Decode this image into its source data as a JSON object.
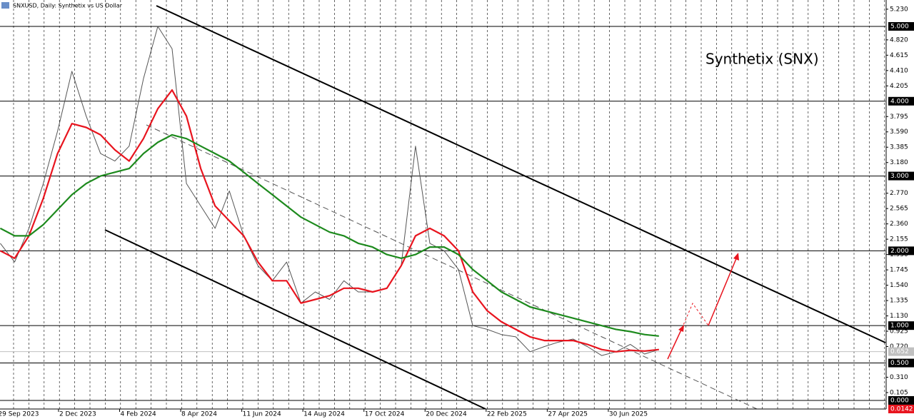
{
  "chart_data": {
    "type": "line",
    "title": "SNXUSD, Daily:  Synthetix vs US Dollar",
    "annotation": "Synthetix (SNX)",
    "x": [
      3,
      18,
      33,
      48,
      63,
      78,
      93,
      108,
      123,
      138,
      153,
      168,
      183,
      198,
      213,
      228,
      243,
      258,
      273,
      288,
      303,
      318,
      333,
      348,
      363,
      378,
      393,
      408,
      423,
      438,
      453,
      468,
      483,
      498,
      513,
      528,
      543,
      558,
      573,
      588,
      603,
      618,
      633,
      648,
      663,
      678,
      693
    ],
    "series": [
      {
        "name": "Price",
        "color": "#555555",
        "values": [
          2.1,
          1.85,
          2.3,
          2.9,
          3.6,
          4.4,
          3.8,
          3.3,
          3.2,
          3.4,
          4.3,
          5.0,
          4.7,
          2.9,
          2.6,
          2.3,
          2.8,
          2.2,
          1.8,
          1.6,
          1.85,
          1.3,
          1.45,
          1.35,
          1.6,
          1.45,
          1.45,
          1.5,
          1.8,
          3.4,
          2.1,
          2.0,
          1.75,
          1.0,
          0.95,
          0.88,
          0.85,
          0.65,
          0.72,
          0.78,
          0.82,
          0.72,
          0.6,
          0.65,
          0.75,
          0.62,
          0.68
        ]
      },
      {
        "name": "MA fast",
        "color": "#e8141e",
        "values": [
          2.0,
          1.9,
          2.2,
          2.7,
          3.3,
          3.7,
          3.65,
          3.55,
          3.35,
          3.2,
          3.5,
          3.9,
          4.15,
          3.8,
          3.1,
          2.6,
          2.4,
          2.2,
          1.85,
          1.6,
          1.6,
          1.3,
          1.35,
          1.4,
          1.5,
          1.5,
          1.45,
          1.5,
          1.8,
          2.2,
          2.3,
          2.2,
          2.0,
          1.45,
          1.2,
          1.05,
          0.95,
          0.85,
          0.8,
          0.8,
          0.8,
          0.75,
          0.68,
          0.65,
          0.67,
          0.66,
          0.68
        ]
      },
      {
        "name": "MA slow",
        "color": "#1d8a1d",
        "values": [
          2.3,
          2.2,
          2.2,
          2.35,
          2.55,
          2.75,
          2.9,
          3.0,
          3.05,
          3.1,
          3.3,
          3.45,
          3.55,
          3.5,
          3.4,
          3.3,
          3.2,
          3.05,
          2.9,
          2.75,
          2.6,
          2.45,
          2.35,
          2.25,
          2.2,
          2.1,
          2.05,
          1.95,
          1.9,
          1.95,
          2.05,
          2.05,
          1.95,
          1.75,
          1.6,
          1.45,
          1.35,
          1.25,
          1.2,
          1.15,
          1.1,
          1.05,
          1.0,
          0.95,
          0.92,
          0.88,
          0.86
        ]
      }
    ],
    "xlim": [
      2.7,
      930.3
    ],
    "xticks": [
      {
        "value": 0,
        "label": "29 Sep 2023"
      },
      {
        "value": 64,
        "label": "2 Dec 2023"
      },
      {
        "value": 128,
        "label": "4 Feb 2024"
      },
      {
        "value": 192,
        "label": "8 Apr 2024"
      },
      {
        "value": 256,
        "label": "11 Jun 2024"
      },
      {
        "value": 320,
        "label": "14 Aug 2024"
      },
      {
        "value": 384,
        "label": "17 Oct 2024"
      },
      {
        "value": 448,
        "label": "20 Dec 2024"
      },
      {
        "value": 512,
        "label": "22 Feb 2025"
      },
      {
        "value": 576,
        "label": "27 Apr 2025"
      },
      {
        "value": 640,
        "label": "30 Jun 2025"
      }
    ],
    "ylim": [
      -0.115,
      5.353
    ],
    "yticks": [
      {
        "value": 5.23,
        "label": "5.230"
      },
      {
        "value": 4.82,
        "label": "4.820"
      },
      {
        "value": 4.615,
        "label": "4.615"
      },
      {
        "value": 4.41,
        "label": "4.410"
      },
      {
        "value": 4.205,
        "label": "4.205"
      },
      {
        "value": 3.795,
        "label": "3.795"
      },
      {
        "value": 3.59,
        "label": "3.590"
      },
      {
        "value": 3.385,
        "label": "3.385"
      },
      {
        "value": 3.18,
        "label": "3.180"
      },
      {
        "value": 2.77,
        "label": "2.770"
      },
      {
        "value": 2.565,
        "label": "2.565"
      },
      {
        "value": 2.36,
        "label": "2.360"
      },
      {
        "value": 2.155,
        "label": "2.155"
      },
      {
        "value": 1.95,
        "label": "1.950"
      },
      {
        "value": 1.745,
        "label": "1.745"
      },
      {
        "value": 1.54,
        "label": "1.540"
      },
      {
        "value": 1.335,
        "label": "1.335"
      },
      {
        "value": 1.13,
        "label": "1.130"
      },
      {
        "value": 0.925,
        "label": "0.925"
      },
      {
        "value": 0.72,
        "label": "0.720"
      },
      {
        "value": 0.31,
        "label": "0.310"
      },
      {
        "value": 0.105,
        "label": "0.105"
      }
    ],
    "levels": [
      {
        "value": 5,
        "label": "5.000"
      },
      {
        "value": 4,
        "label": "4.000"
      },
      {
        "value": 3,
        "label": "3.000"
      },
      {
        "value": 2,
        "label": "2.000"
      },
      {
        "value": 1,
        "label": "1.000"
      },
      {
        "value": 0.5,
        "label": "0.500"
      },
      {
        "value": 0,
        "label": "0.000"
      }
    ],
    "current_price": {
      "value": 0.652,
      "label": "0.652"
    },
    "volume_label": "0.0142"
  }
}
